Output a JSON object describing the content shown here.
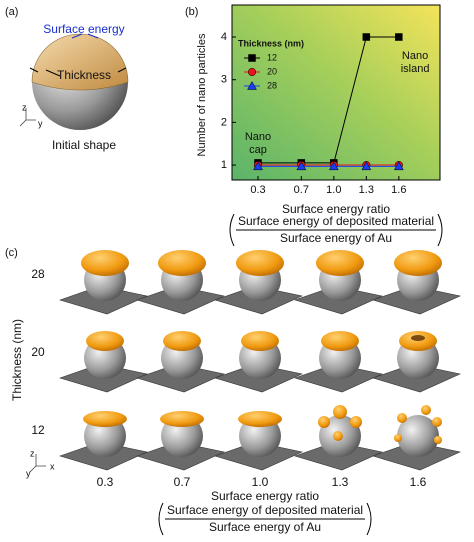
{
  "chart_data": {
    "type": "line",
    "panel_label": "(b)",
    "x_label": "Surface energy ratio",
    "x_label_numerator": "Surface energy of deposited material",
    "x_label_denominator": "Surface energy of Au",
    "y_label": "Number of nano particles",
    "x": [
      0.3,
      0.7,
      1.0,
      1.3,
      1.6
    ],
    "series": [
      {
        "name": "12",
        "color": "#000000",
        "marker": "square",
        "values": [
          1.05,
          1.05,
          1.05,
          4,
          4
        ]
      },
      {
        "name": "20",
        "color": "#e8141b",
        "marker": "circle",
        "values": [
          1,
          1,
          1,
          1,
          1
        ]
      },
      {
        "name": "28",
        "color": "#1a3ff0",
        "marker": "triangle",
        "values": [
          0.97,
          0.97,
          0.97,
          0.97,
          0.97
        ]
      }
    ],
    "xlim": [
      0.06,
      1.98
    ],
    "xticks": [
      0.3,
      0.7,
      {
        "value": 1.0,
        "label": "1.0"
      },
      1.3,
      1.6
    ],
    "ylim": [
      0.65,
      4.75
    ],
    "yticks": [
      1,
      2,
      3,
      4
    ],
    "legend_title": "Thickness (nm)",
    "legend": "upper left",
    "annotations": [
      {
        "lines": [
          "Nano",
          "cap"
        ],
        "x": 0.3,
        "y": 1.65
      },
      {
        "lines": [
          "Nano",
          "island"
        ],
        "x": 1.75,
        "y": 3.55
      }
    ]
  },
  "panel_a": {
    "label": "(a)",
    "surface_energy": "Surface energy",
    "thickness": "Thickness",
    "caption": "Initial shape",
    "axes": [
      "z",
      "y"
    ]
  },
  "panel_c": {
    "label": "(c)",
    "y_label": "Thickness (nm)",
    "rows": [
      "28",
      "20",
      "12"
    ],
    "columns": [
      "0.3",
      "0.7",
      "1.0",
      "1.3",
      "1.6"
    ],
    "x_label": "Surface energy ratio",
    "x_label_numerator": "Surface energy of deposited material",
    "x_label_denominator": "Surface energy of Au",
    "axes": [
      "z",
      "y",
      "x"
    ]
  }
}
